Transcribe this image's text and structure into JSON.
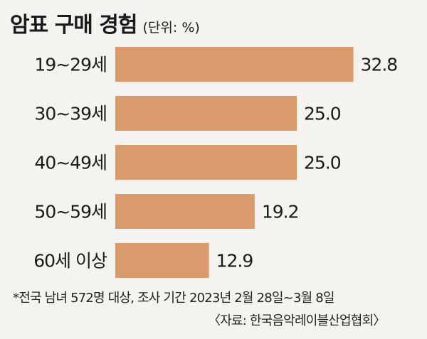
{
  "header": {
    "title": "암표 구매 경험",
    "unit": "(단위: %)"
  },
  "chart_data": {
    "type": "bar",
    "orientation": "horizontal",
    "categories": [
      "19~29세",
      "30~39세",
      "40~49세",
      "50~59세",
      "60세 이상"
    ],
    "values": [
      32.8,
      25.0,
      25.0,
      19.2,
      12.9
    ],
    "value_labels": [
      "32.8",
      "25.0",
      "25.0",
      "19.2",
      "12.9"
    ],
    "xlim": [
      0,
      40
    ],
    "grid": false,
    "legend": "none",
    "bar_color": "#d99a6c"
  },
  "footnotes": {
    "survey": "*전국 남녀 572명 대상, 조사 기간 2023년 2월 28일~3월 8일",
    "source": "〈자료: 한국음악레이블산업협회〉"
  }
}
